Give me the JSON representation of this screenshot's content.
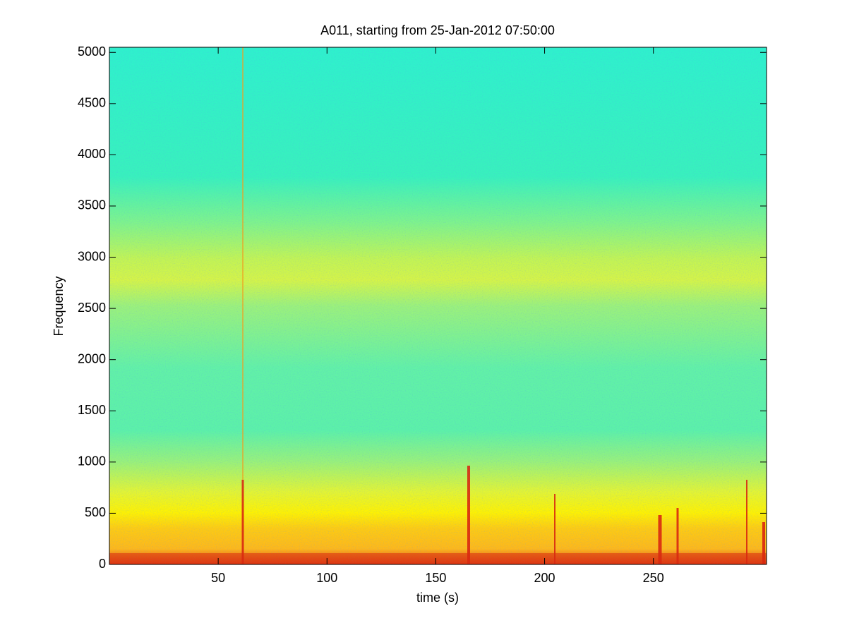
{
  "chart_data": {
    "type": "spectrogram",
    "title": "A011, starting from 25-Jan-2012 07:50:00",
    "x_label": "time (s)",
    "y_label": "Frequency",
    "xlim": [
      0,
      302
    ],
    "xticks": [
      50,
      100,
      150,
      200,
      250
    ],
    "ylim": [
      0,
      5050
    ],
    "yticks": [
      0,
      500,
      1000,
      1500,
      2000,
      2500,
      3000,
      3500,
      4000,
      4500,
      5000
    ]
  }
}
